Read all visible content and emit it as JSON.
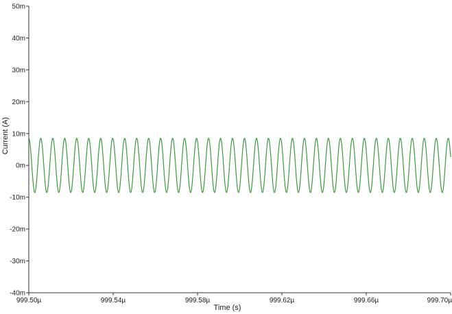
{
  "chart_data": {
    "type": "line",
    "title": "",
    "xlabel": "Time (s)",
    "ylabel": "Current (A)",
    "xlim": [
      999.5,
      999.7
    ],
    "ylim": [
      -40,
      50
    ],
    "x_unit": "µs",
    "y_unit": "mA",
    "grid": false,
    "x_ticks": [
      {
        "value": 999.5,
        "label": "999.50µ"
      },
      {
        "value": 999.54,
        "label": "999.54µ"
      },
      {
        "value": 999.58,
        "label": "999.58µ"
      },
      {
        "value": 999.62,
        "label": "999.62µ"
      },
      {
        "value": 999.66,
        "label": "999.66µ"
      },
      {
        "value": 999.7,
        "label": "999.70µ"
      }
    ],
    "y_ticks": [
      {
        "value": 50,
        "label": "50m"
      },
      {
        "value": 40,
        "label": "40m"
      },
      {
        "value": 30,
        "label": "30m"
      },
      {
        "value": 20,
        "label": "20m"
      },
      {
        "value": 10,
        "label": "10m"
      },
      {
        "value": 0,
        "label": "0m"
      },
      {
        "value": -10,
        "label": "-10m"
      },
      {
        "value": -20,
        "label": "-20m"
      },
      {
        "value": -30,
        "label": "-30m"
      },
      {
        "value": -40,
        "label": "-40m"
      }
    ],
    "series": [
      {
        "color": "#3a9a3a",
        "waveform": "sine",
        "amplitude": 8.5,
        "offset": 0,
        "cycles": 35.2,
        "phase_deg": 90
      }
    ]
  }
}
